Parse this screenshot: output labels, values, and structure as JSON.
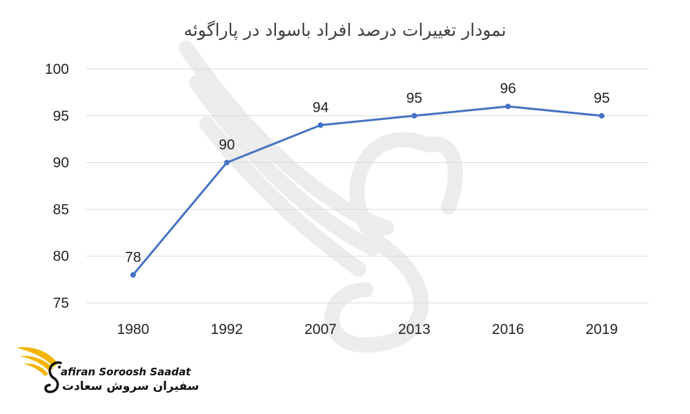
{
  "chart_data": {
    "type": "line",
    "title": "نمودار تغییرات درصد افراد باسواد در پاراگوئه",
    "categories": [
      "1980",
      "1992",
      "2007",
      "2013",
      "2016",
      "2019"
    ],
    "series": [
      {
        "values": [
          78,
          90,
          94,
          95,
          96,
          95
        ]
      }
    ],
    "data_labels": [
      "78",
      "90",
      "94",
      "95",
      "96",
      "95"
    ],
    "yticks": [
      "75",
      "80",
      "85",
      "90",
      "95",
      "100"
    ],
    "ylim": [
      75,
      100
    ],
    "grid": true,
    "legend": "none",
    "line_color": "#4472C4",
    "grid_color": "#D9D9D9"
  },
  "logo": {
    "text_en": "afiran Soroosh Saadat",
    "text_fa": "سفیران سروش سعادت",
    "accent_color": "#F2B400"
  }
}
